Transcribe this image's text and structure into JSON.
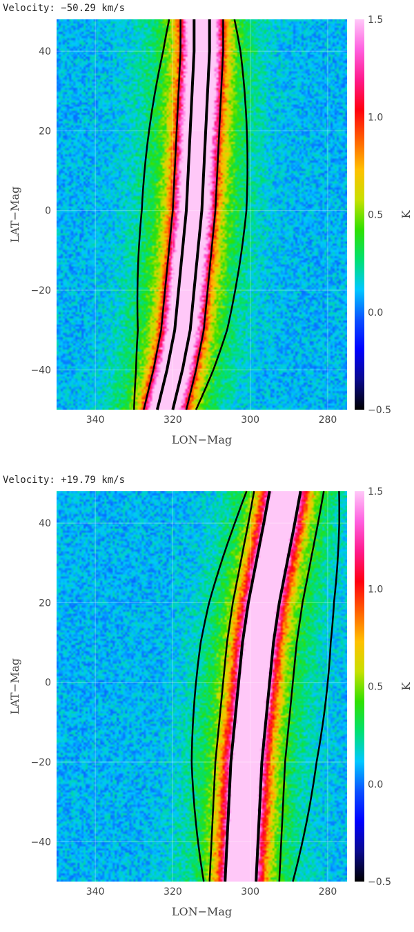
{
  "chart_data": [
    {
      "type": "heatmap",
      "title": "Velocity: −50.29 km/s",
      "xlabel": "LON−Mag",
      "ylabel": "LAT−Mag",
      "xlim": [
        350,
        275
      ],
      "ylim": [
        -50,
        48
      ],
      "x_ticks": [
        340,
        320,
        300,
        280
      ],
      "x_tick_labels": [
        "340",
        "320",
        "300",
        "280"
      ],
      "y_ticks": [
        40,
        20,
        0,
        -20,
        -40
      ],
      "y_tick_labels": [
        "40",
        "20",
        "0",
        "−20",
        "−40"
      ],
      "grid": true,
      "colorbar": {
        "label": "K",
        "range": [
          -0.5,
          1.5
        ],
        "ticks": [
          1.5,
          1.0,
          0.5,
          0.0,
          -0.5
        ],
        "tick_labels": [
          "1.5",
          "1.0",
          "0.5",
          "0.0",
          "−0.5"
        ],
        "colors": [
          "#000000",
          "#0a0a8c",
          "#0000ff",
          "#0a50ff",
          "#00c8ff",
          "#00e070",
          "#30e000",
          "#c8e000",
          "#ffc000",
          "#ff6000",
          "#ff0010",
          "#ff1a8c",
          "#ff60e0",
          "#ffc8f8"
        ]
      },
      "stream_center": [
        [
          -50,
          322
        ],
        [
          -40,
          319.5
        ],
        [
          -30,
          317.5
        ],
        [
          -20,
          316.5
        ],
        [
          -10,
          315.5
        ],
        [
          0,
          314.5
        ],
        [
          10,
          314
        ],
        [
          20,
          313.5
        ],
        [
          30,
          313
        ],
        [
          40,
          312.5
        ],
        [
          48,
          312.5
        ]
      ],
      "contour_offsets": [
        -13.5,
        -5.5,
        -2,
        2,
        5.5,
        13.5
      ],
      "background_level": 0.1
    },
    {
      "type": "heatmap",
      "title": "Velocity: +19.79 km/s",
      "xlabel": "LON−Mag",
      "ylabel": "LAT−Mag",
      "xlim": [
        350,
        275
      ],
      "ylim": [
        -50,
        48
      ],
      "x_ticks": [
        340,
        320,
        300,
        280
      ],
      "x_tick_labels": [
        "340",
        "320",
        "300",
        "280"
      ],
      "y_ticks": [
        40,
        20,
        0,
        -20,
        -40
      ],
      "y_tick_labels": [
        "40",
        "20",
        "0",
        "−20",
        "−40"
      ],
      "grid": true,
      "colorbar": {
        "label": "K",
        "range": [
          -0.5,
          1.5
        ],
        "ticks": [
          1.5,
          1.0,
          0.5,
          0.0,
          -0.5
        ],
        "tick_labels": [
          "1.5",
          "1.0",
          "0.5",
          "0.0",
          "−0.5"
        ],
        "colors": [
          "#000000",
          "#0a0a8c",
          "#0000ff",
          "#0a50ff",
          "#00c8ff",
          "#00e070",
          "#30e000",
          "#c8e000",
          "#ffc000",
          "#ff6000",
          "#ff0010",
          "#ff1a8c",
          "#ff60e0",
          "#ffc8f8"
        ]
      },
      "stream_center": [
        [
          -50,
          302.5
        ],
        [
          -40,
          302
        ],
        [
          -30,
          301.5
        ],
        [
          -20,
          301
        ],
        [
          -10,
          300
        ],
        [
          0,
          299
        ],
        [
          10,
          298
        ],
        [
          20,
          296.5
        ],
        [
          30,
          294.5
        ],
        [
          40,
          292.5
        ],
        [
          48,
          291
        ]
      ],
      "contour_offsets": [
        -19,
        -10,
        -4,
        4,
        8,
        15
      ],
      "background_level": 0.1
    }
  ]
}
